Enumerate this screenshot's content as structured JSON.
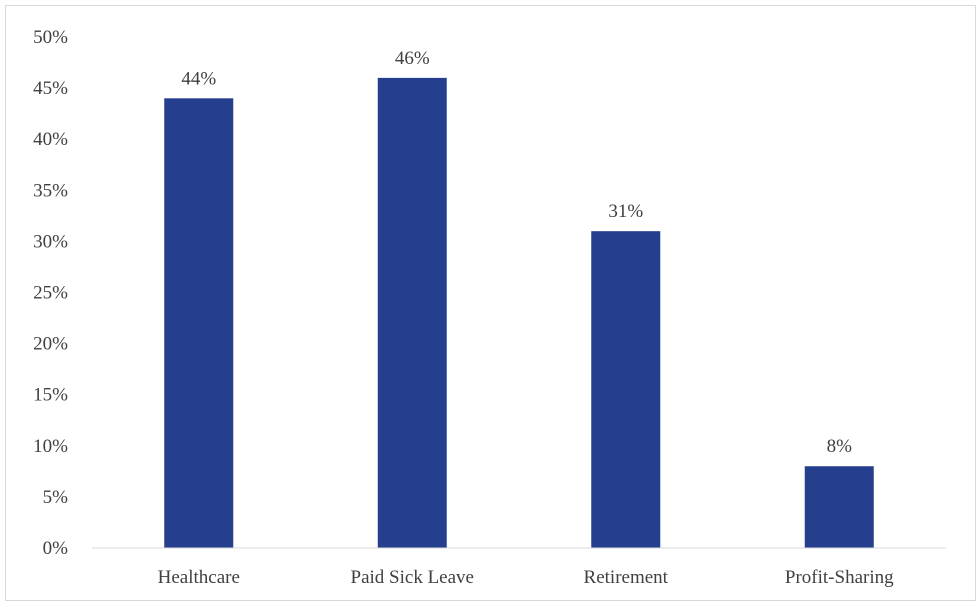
{
  "chart_data": {
    "type": "bar",
    "title": "",
    "xlabel": "",
    "ylabel": "",
    "categories": [
      "Healthcare",
      "Paid Sick Leave",
      "Retirement",
      "Profit-Sharing"
    ],
    "values": [
      44,
      46,
      31,
      8
    ],
    "data_labels": [
      "44%",
      "46%",
      "31%",
      "8%"
    ],
    "ylim": [
      0,
      50
    ],
    "y_ticks": [
      0,
      5,
      10,
      15,
      20,
      25,
      30,
      35,
      40,
      45,
      50
    ],
    "y_tick_labels": [
      "0%",
      "5%",
      "10%",
      "15%",
      "20%",
      "25%",
      "30%",
      "35%",
      "40%",
      "45%",
      "50%"
    ],
    "grid": false,
    "legend": "none",
    "bar_color": "#253f8e",
    "axis_color": "#d9d9d9"
  }
}
